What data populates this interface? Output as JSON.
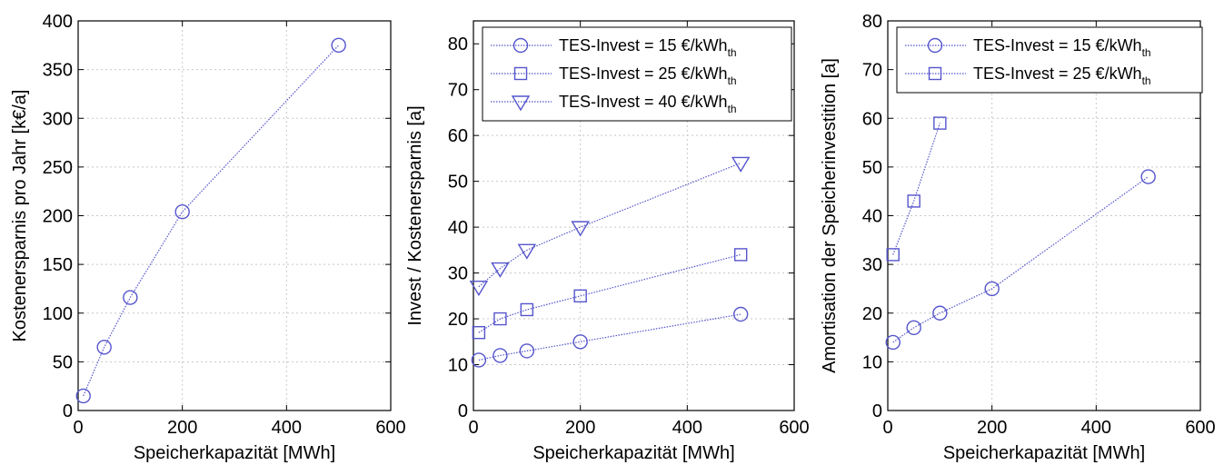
{
  "chart_data": [
    {
      "type": "line",
      "xlabel": "Speicherkapazität [MWh]",
      "ylabel": "Kostenersparnis pro Jahr [k€/a]",
      "xlim": [
        0,
        600
      ],
      "ylim": [
        0,
        400
      ],
      "xticks": [
        0,
        200,
        400,
        600
      ],
      "yticks": [
        0,
        50,
        100,
        150,
        200,
        250,
        300,
        350,
        400
      ],
      "grid": true,
      "legend": "none",
      "series": [
        {
          "marker": "circle",
          "x": [
            10,
            50,
            100,
            200,
            500
          ],
          "y": [
            15,
            65,
            116,
            204,
            375
          ]
        }
      ]
    },
    {
      "type": "line",
      "xlabel": "Speicherkapazität [MWh]",
      "ylabel": "Invest / Kostenersparnis [a]",
      "xlim": [
        0,
        600
      ],
      "ylim": [
        0,
        85
      ],
      "xticks": [
        0,
        200,
        400,
        600
      ],
      "yticks": [
        0,
        10,
        20,
        30,
        40,
        50,
        60,
        70,
        80
      ],
      "grid": true,
      "legend": "top-left",
      "series": [
        {
          "name": "TES-Invest = 15 €/kWh",
          "name_sub": "th",
          "marker": "circle",
          "x": [
            10,
            50,
            100,
            200,
            500
          ],
          "y": [
            11,
            12,
            13,
            15,
            21
          ]
        },
        {
          "name": "TES-Invest = 25 €/kWh",
          "name_sub": "th",
          "marker": "square",
          "x": [
            10,
            50,
            100,
            200,
            500
          ],
          "y": [
            17,
            20,
            22,
            25,
            34
          ]
        },
        {
          "name": "TES-Invest = 40 €/kWh",
          "name_sub": "th",
          "marker": "triangle-down",
          "x": [
            10,
            50,
            100,
            200,
            500
          ],
          "y": [
            27,
            31,
            35,
            40,
            54
          ]
        }
      ]
    },
    {
      "type": "line",
      "xlabel": "Speicherkapazität [MWh]",
      "ylabel": "Amortisation der Speicherinvestition [a]",
      "xlim": [
        0,
        600
      ],
      "ylim": [
        0,
        80
      ],
      "xticks": [
        0,
        200,
        400,
        600
      ],
      "yticks": [
        0,
        10,
        20,
        30,
        40,
        50,
        60,
        70,
        80
      ],
      "grid": true,
      "legend": "top-left",
      "series": [
        {
          "name": "TES-Invest = 15 €/kWh",
          "name_sub": "th",
          "marker": "circle",
          "x": [
            10,
            50,
            100,
            200,
            500
          ],
          "y": [
            14,
            17,
            20,
            25,
            48
          ]
        },
        {
          "name": "TES-Invest = 25 €/kWh",
          "name_sub": "th",
          "marker": "square",
          "x": [
            10,
            50,
            100
          ],
          "y": [
            32,
            43,
            59
          ]
        }
      ]
    }
  ],
  "colors": {
    "line": "#5555cc",
    "axis": "#000000",
    "grid": "#c8c8c8"
  }
}
